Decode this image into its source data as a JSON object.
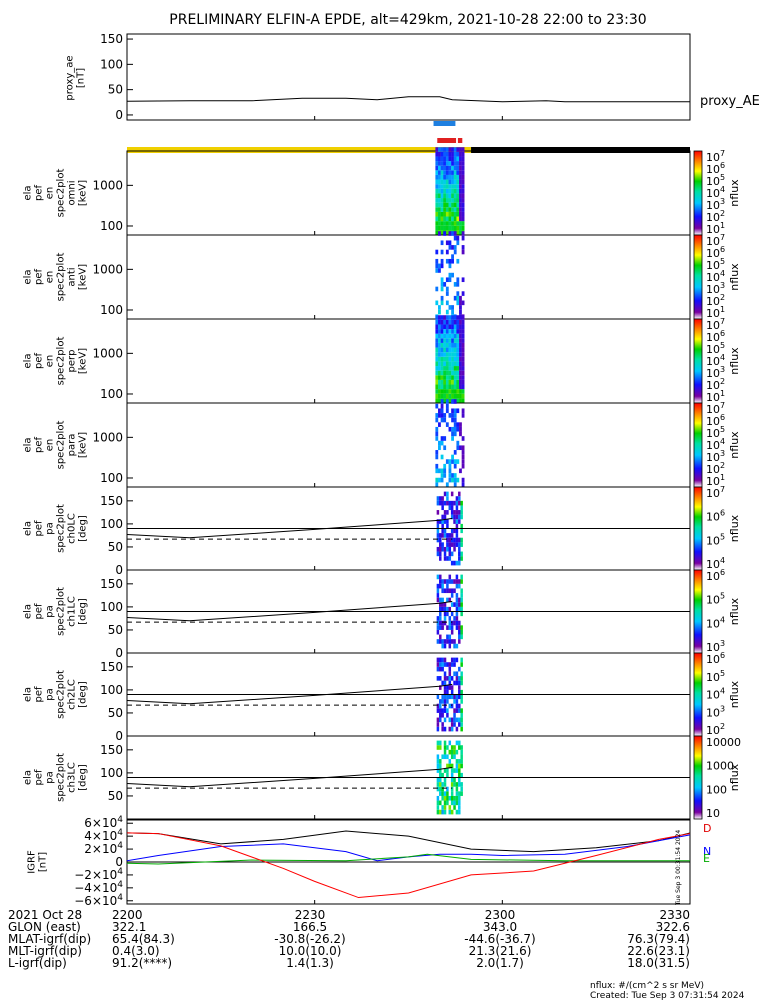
{
  "chart_data": {
    "type": "heatmap",
    "title": "PRELIMINARY ELFIN-A EPDE, alt=429km, 2021-10-28 22:00 to 23:30",
    "time_ticks": [
      "2200",
      "2230",
      "2300",
      "2330"
    ],
    "time_range_min": [
      0,
      90
    ],
    "proxy_ae": {
      "ylabel": [
        "proxy_ae",
        "[nT]"
      ],
      "yticks": [
        "150",
        "100",
        "50",
        "0"
      ],
      "ylim": [
        -10,
        160
      ],
      "legend": "proxy_AE",
      "x": [
        0,
        10,
        20,
        28,
        35,
        40,
        45,
        50,
        52,
        60,
        67,
        70,
        80,
        90
      ],
      "y": [
        27,
        28,
        28,
        33,
        33,
        30,
        36,
        36,
        30,
        26,
        28,
        26,
        26,
        26
      ]
    },
    "status_bars": {
      "blue_min": [
        49,
        52.5
      ],
      "red_segments_min": [
        [
          49.6,
          52.6
        ],
        [
          52.9,
          53.6
        ]
      ],
      "yellow_min": [
        0,
        55
      ],
      "black_min": [
        55,
        90
      ]
    },
    "spectrogram_panels": [
      {
        "ylabel": [
          "ela",
          "pef",
          "en",
          "spec2plot",
          "omni",
          "[keV]"
        ],
        "yticks": [
          "1000",
          "100"
        ],
        "cbar_label": "nflux",
        "cbar_ticks": [
          "10^7",
          "10^6",
          "10^5",
          "10^4",
          "10^3",
          "10^2",
          "10^1"
        ]
      },
      {
        "ylabel": [
          "ela",
          "pef",
          "en",
          "spec2plot",
          "anti",
          "[keV]"
        ],
        "yticks": [
          "1000",
          "100"
        ],
        "cbar_label": "nflux",
        "cbar_ticks": [
          "10^7",
          "10^6",
          "10^5",
          "10^4",
          "10^3",
          "10^2",
          "10^1"
        ]
      },
      {
        "ylabel": [
          "ela",
          "pef",
          "en",
          "spec2plot",
          "perp",
          "[keV]"
        ],
        "yticks": [
          "1000",
          "100"
        ],
        "cbar_label": "nflux",
        "cbar_ticks": [
          "10^7",
          "10^6",
          "10^5",
          "10^4",
          "10^3",
          "10^2",
          "10^1"
        ]
      },
      {
        "ylabel": [
          "ela",
          "pef",
          "en",
          "spec2plot",
          "para",
          "[keV]"
        ],
        "yticks": [
          "1000",
          "100"
        ],
        "cbar_label": "nflux",
        "cbar_ticks": [
          "10^7",
          "10^6",
          "10^5",
          "10^4",
          "10^3",
          "10^2",
          "10^1"
        ]
      }
    ],
    "pa_panels": [
      {
        "ylabel": [
          "ela",
          "pef",
          "pa",
          "spec2plot",
          "ch0LC",
          "[deg]"
        ],
        "yticks": [
          "150",
          "100",
          "50",
          "0"
        ],
        "cbar_label": "nflux",
        "cbar_ticks": [
          "10^7",
          "10^6",
          "10^5",
          "10^4"
        ]
      },
      {
        "ylabel": [
          "ela",
          "pef",
          "pa",
          "spec2plot",
          "ch1LC",
          "[deg]"
        ],
        "yticks": [
          "150",
          "100",
          "50",
          "0"
        ],
        "cbar_label": "nflux",
        "cbar_ticks": [
          "10^6",
          "10^5",
          "10^4",
          "10^3"
        ]
      },
      {
        "ylabel": [
          "ela",
          "pef",
          "pa",
          "spec2plot",
          "ch2LC",
          "[deg]"
        ],
        "yticks": [
          "150",
          "100",
          "50",
          "0"
        ],
        "cbar_label": "nflux",
        "cbar_ticks": [
          "10^6",
          "10^5",
          "10^4",
          "10^3",
          "10^2"
        ]
      },
      {
        "ylabel": [
          "ela",
          "pef",
          "pa",
          "spec2plot",
          "ch3LC",
          "[deg]"
        ],
        "yticks": [
          "150",
          "100",
          "50"
        ],
        "cbar_label": "nflux",
        "cbar_ticks": [
          "10000",
          "1000",
          "100",
          "10"
        ]
      }
    ],
    "pa_lines": {
      "x": [
        0,
        10,
        30,
        50,
        52
      ],
      "solid_y": [
        77,
        70,
        88,
        108,
        112
      ],
      "dashed_y": [
        67,
        67,
        67,
        67,
        67
      ],
      "hline_y": 90
    },
    "igrf": {
      "ylabel": [
        "IGRF",
        "[nT]"
      ],
      "yticks": [
        "6×10^4",
        "4×10^4",
        "2×10^4",
        "0",
        "−2×10^4",
        "−4×10^4",
        "−6×10^4"
      ],
      "ylim": [
        -6.5,
        6.5
      ],
      "y_unit": "10^4 nT",
      "side_labels": [
        "D",
        "N",
        "E"
      ],
      "series": [
        {
          "color": "#000000",
          "x": [
            0,
            5,
            15,
            25,
            35,
            45,
            55,
            65,
            75,
            85,
            90
          ],
          "y": [
            4.5,
            4.4,
            2.8,
            3.5,
            4.8,
            4.0,
            2.0,
            1.6,
            2.2,
            3.3,
            4.5
          ]
        },
        {
          "color": "#0000ff",
          "x": [
            0,
            5,
            15,
            25,
            35,
            40,
            45,
            50,
            55,
            60,
            70,
            80,
            90
          ],
          "y": [
            0.2,
            1.0,
            2.4,
            2.8,
            1.6,
            0.2,
            0.8,
            1.2,
            1.2,
            1.0,
            1.2,
            2.4,
            4.2
          ]
        },
        {
          "color": "#00aa00",
          "x": [
            0,
            5,
            20,
            35,
            45,
            48,
            55,
            70,
            90
          ],
          "y": [
            -0.2,
            -0.3,
            0.3,
            0.2,
            0.8,
            1.2,
            0.4,
            0.2,
            0.2
          ]
        },
        {
          "color": "#ff0000",
          "x": [
            0,
            5,
            15,
            25,
            30,
            37,
            45,
            55,
            65,
            75,
            85,
            90
          ],
          "y": [
            4.5,
            4.4,
            2.5,
            -1.0,
            -3.0,
            -5.5,
            -4.8,
            -2.0,
            -1.4,
            1.0,
            3.5,
            4.4
          ]
        }
      ]
    },
    "footer": {
      "rows": [
        [
          "2021 Oct 28",
          "2200",
          "2230",
          "2300",
          "2330"
        ],
        [
          "GLON (east)",
          "322.1",
          "166.5",
          "343.0",
          "322.6"
        ],
        [
          "MLAT-igrf(dip)",
          "65.4(84.3)",
          "-30.8(-26.2)",
          "-44.6(-36.7)",
          "76.3(79.4)"
        ],
        [
          "MLT-igrf(dip)",
          "0.4(3.0)",
          "10.0(10.0)",
          "21.3(21.6)",
          "22.6(23.1)"
        ],
        [
          "L-igrf(dip)",
          "91.2(****)",
          "1.4(1.3)",
          "2.0(1.7)",
          "18.0(31.5)"
        ]
      ],
      "unit_note": "nflux: #/(cm^2 s sr MeV)",
      "created": "Created: Tue Sep  3 07:31:54 2024",
      "side_stamp": "Tue Sep  3 00:31:54 2024"
    }
  }
}
